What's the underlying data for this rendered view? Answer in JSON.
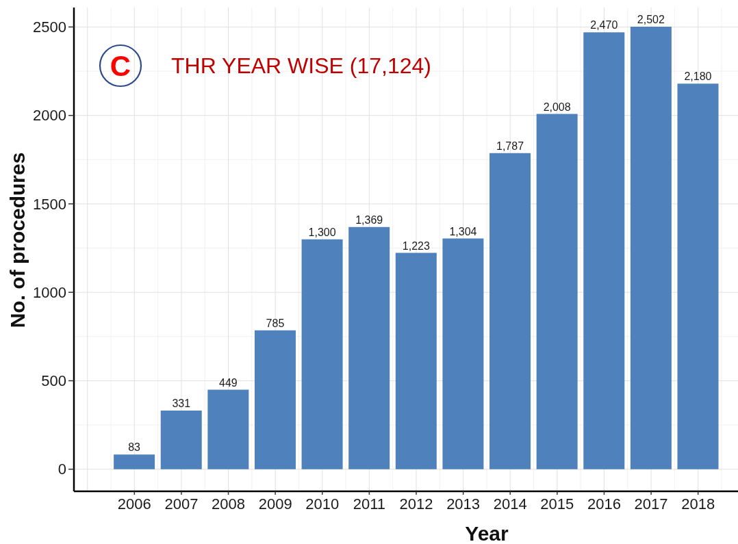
{
  "chart_data": {
    "type": "bar",
    "title": "THR YEAR WISE (17,124)",
    "xlabel": "Year",
    "ylabel": "No. of procedures",
    "annotations": [
      "C"
    ],
    "categories": [
      "2006",
      "2007",
      "2008",
      "2009",
      "2010",
      "2011",
      "2012",
      "2013",
      "2014",
      "2015",
      "2016",
      "2017",
      "2018"
    ],
    "values": [
      83,
      331,
      449,
      785,
      1300,
      1369,
      1223,
      1304,
      1787,
      2008,
      2470,
      2502,
      2180
    ],
    "value_labels": [
      "83",
      "331",
      "449",
      "785",
      "1,300",
      "1,369",
      "1,223",
      "1,304",
      "1,787",
      "2,008",
      "2,470",
      "2,502",
      "2,180"
    ],
    "color": "#4f81bd",
    "ylim": [
      -125,
      2610
    ],
    "yticks": [
      0,
      500,
      1000,
      1500,
      2000,
      2500
    ],
    "grid": true
  }
}
